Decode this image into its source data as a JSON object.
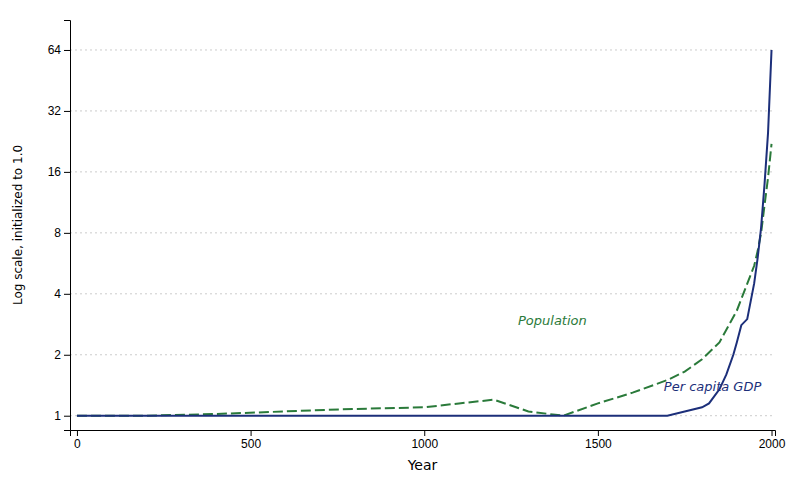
{
  "chart_data": {
    "type": "line",
    "title": "",
    "xlabel": "Year",
    "ylabel": "Log scale, initialized to 1.0",
    "log": "y",
    "grid": true,
    "xlim": [
      -20,
      2010
    ],
    "xticks": [
      0,
      500,
      1000,
      1500,
      2000
    ],
    "ylim": [
      0.85,
      90
    ],
    "yticks": [
      1,
      2,
      4,
      8,
      16,
      32,
      64
    ],
    "series": [
      {
        "color": "#2a7a3a",
        "line_style": "dashed",
        "x": [
          0,
          200,
          400,
          600,
          800,
          1000,
          1100,
          1200,
          1300,
          1400,
          1500,
          1600,
          1700,
          1750,
          1800,
          1850,
          1900,
          1950,
          1960,
          1970,
          1980,
          1990,
          2000
        ],
        "values": [
          1.0,
          1.0,
          1.02,
          1.05,
          1.08,
          1.1,
          1.15,
          1.2,
          1.05,
          1.0,
          1.15,
          1.3,
          1.5,
          1.65,
          1.9,
          2.3,
          3.3,
          5.5,
          6.5,
          8.0,
          11.0,
          15.0,
          22.0
        ]
      },
      {
        "color": "#1c2f7a",
        "line_style": "solid",
        "x": [
          0,
          200,
          400,
          600,
          800,
          1000,
          1100,
          1200,
          1300,
          1400,
          1500,
          1600,
          1700,
          1750,
          1800,
          1820,
          1850,
          1870,
          1890,
          1900,
          1913,
          1930,
          1950,
          1960,
          1970,
          1980,
          1990,
          2000
        ],
        "values": [
          1.0,
          1.0,
          1.0,
          1.0,
          1.0,
          1.0,
          1.0,
          1.0,
          1.0,
          1.0,
          1.0,
          1.0,
          1.0,
          1.05,
          1.1,
          1.15,
          1.35,
          1.6,
          2.0,
          2.3,
          2.8,
          3.0,
          4.5,
          6.0,
          8.5,
          14.0,
          25.0,
          64.0
        ]
      }
    ],
    "annotations": [
      {
        "x": 1270,
        "y": 2.8,
        "text": "Population"
      },
      {
        "x": 1690,
        "y": 1.32,
        "text": "Per capita GDP"
      }
    ]
  }
}
